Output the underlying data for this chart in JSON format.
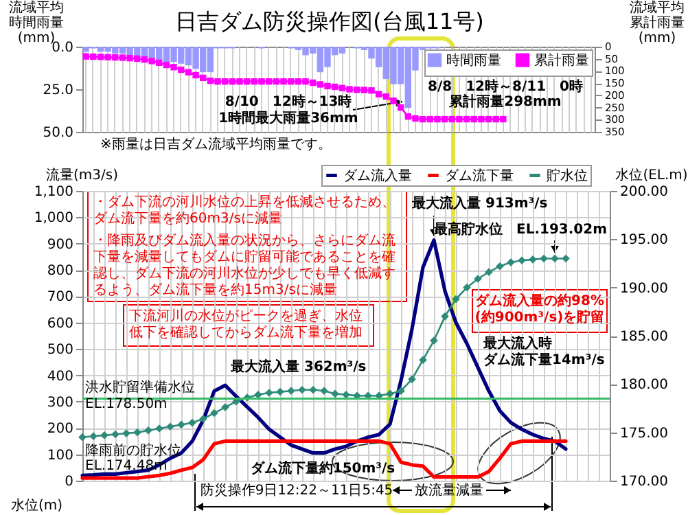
{
  "chart_data": [
    {
      "type": "bar",
      "title": "日吉ダム防災操作図(台風11号)",
      "ylabel": "流域平均時間雨量(mm)",
      "y2label": "流域平均累計雨量(mm)",
      "annotations": [
        "8/10　12時～13時\n1時間最大雨量36mm",
        "8/8　12時～8/11　0時累計雨量298mm",
        "※雨量は日吉ダム流域平均雨量です。"
      ],
      "categories": [
        null,
        null,
        null,
        null,
        null,
        null,
        null,
        null,
        null,
        null,
        null,
        null,
        null,
        null,
        null,
        null,
        null,
        null,
        null,
        null,
        null,
        null,
        null,
        null,
        null,
        null,
        null,
        null,
        null,
        null,
        null,
        null,
        null,
        null,
        null,
        null,
        null,
        null,
        null,
        null,
        null,
        null,
        null,
        null,
        null,
        null,
        null,
        null,
        null,
        null,
        null,
        null,
        null,
        null,
        null,
        null,
        null,
        null,
        null,
        null,
        null,
        null,
        null,
        null,
        null,
        null,
        null,
        null,
        null,
        null
      ],
      "series": [
        {
          "name": "時間雨量",
          "color": "#9999ff",
          "values": [
            3,
            1,
            3,
            3,
            4,
            4,
            5,
            6,
            6,
            7,
            8,
            9,
            9,
            10,
            11,
            13,
            15,
            15,
            1,
            1,
            1,
            0,
            0,
            0,
            1,
            0,
            0,
            0,
            1,
            2,
            5,
            4,
            15,
            12,
            5,
            4,
            0,
            1,
            2,
            7,
            12,
            19,
            22,
            22,
            36,
            14,
            2,
            1,
            1,
            0,
            0,
            0,
            0,
            0,
            0,
            0,
            0,
            0,
            0,
            0,
            0,
            0,
            0,
            0,
            0,
            0,
            0,
            0,
            0,
            0
          ]
        },
        {
          "name": "累計雨量",
          "type": "line",
          "axis": "y2",
          "color": "#ff00ff",
          "marker": "square",
          "values": [
            40,
            41,
            42,
            43,
            44,
            45,
            47,
            49,
            53,
            59,
            66,
            75,
            84,
            95,
            105,
            117,
            128,
            140,
            143,
            143,
            143,
            143,
            143,
            143,
            143,
            143,
            143,
            143,
            143,
            143,
            143,
            148,
            155,
            162,
            165,
            170,
            175,
            177,
            178,
            180,
            195,
            205,
            222,
            250,
            287,
            295,
            298,
            298,
            298,
            298,
            298,
            298,
            298,
            298,
            298,
            298,
            298,
            298,
            null,
            null,
            null,
            null,
            null,
            null,
            null,
            null,
            null,
            null,
            null,
            null
          ]
        }
      ],
      "ylim": [
        50,
        0
      ],
      "yticks": [
        {
          "value": 0,
          "label": "0.0"
        },
        {
          "value": 25,
          "label": "25.0"
        },
        {
          "value": 50,
          "label": "50.0"
        }
      ],
      "y2lim": [
        350,
        0
      ],
      "y2ticks": [
        0,
        50,
        100,
        150,
        200,
        250,
        300,
        350
      ],
      "grid": "x",
      "legend": "top right",
      "tick_labels": "y"
    },
    {
      "type": "line",
      "ylabel": "流量(m3/s)",
      "y2label": "水位(EL.m)",
      "annotations": [
        "最大流入量 913m³/s",
        "最高貯水位　EL.193.02m",
        "最大流入量 362m³/s",
        "降雨前の貯水位\nEL.174.48m",
        "ダム流下量約150m³/s",
        "・ダム下流の河川水位の上昇を低減させるため、ダム流下量を約60m3/sに減量",
        "・降雨及びダム流入量の状況から、さらにダム流下量を減量してもダムに貯留可能であることを確認し、ダム下流の河川水位が少しでも早く低減するよう、ダム流下量を約15m3/sに減量",
        "ダム流入量の約98%\n(約900m³/s)を貯留",
        "最大流入時ダム流下量14m³/s",
        "下流河川の水位がピークを過ぎ、水位低下を確認してからダム流下量を増加",
        "防災操作9日12:22～11日5:45",
        "放流量減量",
        "水位(m)"
      ],
      "categories": [
        null,
        null,
        null,
        null,
        null,
        null,
        null,
        null,
        null,
        null,
        null,
        null,
        null,
        null,
        null,
        null,
        null,
        null,
        null,
        null,
        null,
        null,
        null,
        null,
        null,
        null,
        null,
        null,
        null,
        null,
        null,
        null,
        null,
        null,
        null,
        null,
        null,
        null,
        null,
        null,
        null,
        null,
        null,
        null,
        null,
        null,
        null,
        null,
        null
      ],
      "series": [
        {
          "name": "ダム流入量",
          "color": "#000080",
          "values": [
            20,
            22,
            25,
            25,
            30,
            35,
            40,
            60,
            85,
            105,
            150,
            230,
            340,
            362,
            320,
            280,
            240,
            195,
            165,
            135,
            120,
            105,
            105,
            120,
            130,
            150,
            165,
            175,
            215,
            380,
            575,
            810,
            913,
            720,
            600,
            520,
            430,
            340,
            265,
            220,
            195,
            175,
            160,
            150,
            120,
            null,
            null,
            null,
            null
          ]
        },
        {
          "name": "ダム流下量",
          "color": "#ff0000",
          "values": [
            10,
            10,
            10,
            10,
            10,
            10,
            15,
            20,
            28,
            40,
            50,
            80,
            140,
            150,
            150,
            150,
            150,
            150,
            150,
            150,
            150,
            150,
            150,
            150,
            150,
            150,
            150,
            150,
            140,
            70,
            60,
            55,
            14,
            14,
            14,
            14,
            14,
            35,
            85,
            140,
            150,
            150,
            150,
            150,
            150,
            null,
            null,
            null,
            null
          ]
        },
        {
          "name": "貯水位",
          "axis": "y2",
          "color": "#2e8b7a",
          "marker": "diamond",
          "values": [
            174.5,
            174.6,
            174.7,
            174.8,
            174.9,
            175.0,
            175.2,
            175.4,
            175.6,
            175.8,
            176.0,
            176.4,
            177.0,
            177.6,
            178.2,
            178.6,
            178.9,
            179.1,
            179.2,
            179.3,
            179.4,
            179.4,
            179.3,
            179.0,
            178.9,
            178.8,
            178.8,
            178.8,
            179.0,
            179.3,
            180.5,
            182.5,
            184.5,
            187.0,
            188.8,
            190.0,
            190.9,
            191.6,
            192.2,
            192.6,
            192.8,
            192.9,
            193.0,
            193.0,
            193.0,
            null,
            null,
            null,
            null
          ]
        }
      ],
      "ylim": [
        0,
        1100
      ],
      "yticks": [
        0,
        100,
        200,
        300,
        400,
        500,
        600,
        700,
        800,
        900,
        {
          "value": 1000,
          "label": "1,000"
        },
        {
          "value": 1100,
          "label": "1,100"
        }
      ],
      "y2lim": [
        170,
        200
      ],
      "y2ticks": [
        {
          "value": 170,
          "label": "170.00"
        },
        {
          "value": 175,
          "label": "175.00"
        },
        {
          "value": 180,
          "label": "180.00"
        },
        {
          "value": 185,
          "label": "185.00"
        },
        {
          "value": 190,
          "label": "190.00"
        },
        {
          "value": 195,
          "label": "195.00"
        },
        {
          "value": 200,
          "label": "200.00"
        }
      ],
      "ref_lines": [
        {
          "axis": "y2",
          "value": 178.5,
          "label": "洪水貯留準備水位EL.178.50m",
          "color": "#33bb66"
        }
      ],
      "grid": true,
      "legend": "top right",
      "tick_labels": "y"
    }
  ]
}
